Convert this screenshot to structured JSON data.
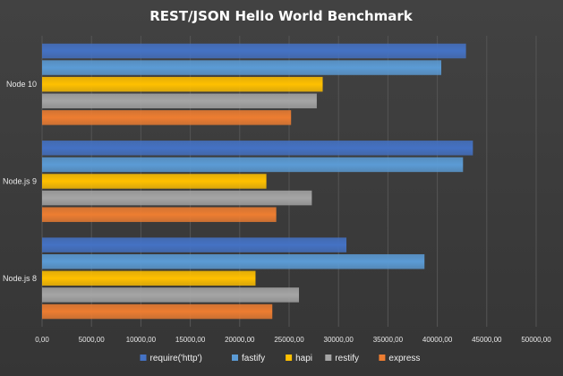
{
  "chart_data": {
    "type": "bar",
    "orientation": "horizontal",
    "title": "REST/JSON Hello World Benchmark",
    "categories": [
      "Node 10",
      "Node.js 9",
      "Node.js 8"
    ],
    "series": [
      {
        "name": "require('http')",
        "color": "#4472c4",
        "values": [
          42900,
          43600,
          30800
        ]
      },
      {
        "name": "fastify",
        "color": "#5b9bd5",
        "values": [
          40400,
          42600,
          38700
        ]
      },
      {
        "name": "hapi",
        "color": "#ffc000",
        "values": [
          28400,
          22700,
          21600
        ]
      },
      {
        "name": "restify",
        "color": "#a5a5a5",
        "values": [
          27800,
          27300,
          26000
        ]
      },
      {
        "name": "express",
        "color": "#ed7d31",
        "values": [
          25200,
          23700,
          23300
        ]
      }
    ],
    "xlim": [
      0,
      50000
    ],
    "x_ticks": [
      "0,00",
      "5000,00",
      "10000,00",
      "15000,00",
      "20000,00",
      "25000,00",
      "30000,00",
      "35000,00",
      "40000,00",
      "45000,00",
      "50000,00"
    ],
    "grid": true,
    "legend_position": "bottom"
  }
}
